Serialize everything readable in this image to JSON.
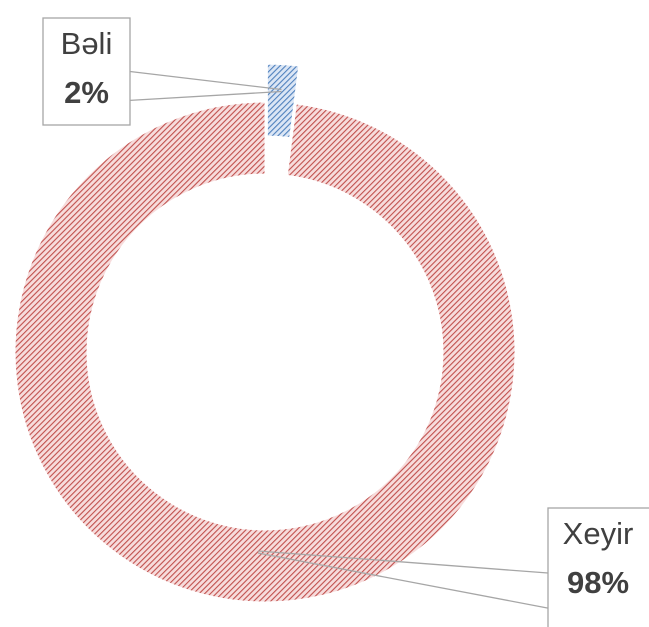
{
  "chart_data": {
    "type": "donut",
    "categories": [
      "Bəli",
      "Xeyir"
    ],
    "values": [
      2,
      98
    ],
    "value_labels": [
      "2%",
      "98%"
    ],
    "colors": [
      "#4f81bd",
      "#c0504d"
    ]
  }
}
